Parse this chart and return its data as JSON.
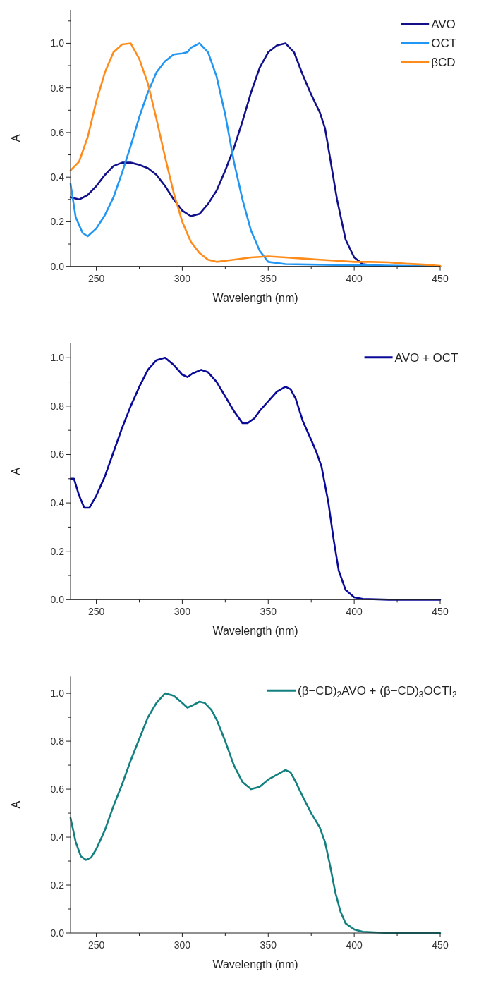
{
  "chart_data": [
    {
      "type": "line",
      "xlabel": "Wavelength (nm)",
      "ylabel": "A",
      "xlim": [
        235,
        450
      ],
      "ylim": [
        0,
        1.15
      ],
      "legend": "top right",
      "grid": false,
      "line_style": "solid",
      "xticks": [
        250,
        {
          "value": 275,
          "label": null
        },
        300,
        {
          "value": 325,
          "label": null
        },
        350,
        {
          "value": 375,
          "label": null
        },
        400,
        {
          "value": 425,
          "label": null
        },
        450
      ],
      "yticks": [
        {
          "value": 0,
          "label": "0.0"
        },
        {
          "value": 0.1,
          "label": null
        },
        {
          "value": 0.2,
          "label": "0.2"
        },
        {
          "value": 0.3,
          "label": null
        },
        {
          "value": 0.4,
          "label": "0.4"
        },
        {
          "value": 0.5,
          "label": null
        },
        {
          "value": 0.6,
          "label": "0.6"
        },
        {
          "value": 0.7,
          "label": null
        },
        {
          "value": 0.8,
          "label": "0.8"
        },
        {
          "value": 0.9,
          "label": null
        },
        {
          "value": 1.0,
          "label": "1.0"
        },
        {
          "value": 1.1,
          "label": null
        }
      ],
      "series": [
        {
          "name": "AVO",
          "color": "#10108c",
          "x": [
            235,
            240,
            245,
            250,
            255,
            260,
            265,
            270,
            275,
            280,
            285,
            290,
            295,
            300,
            305,
            310,
            315,
            320,
            325,
            330,
            335,
            340,
            345,
            350,
            355,
            360,
            365,
            370,
            375,
            380,
            383,
            385,
            390,
            395,
            400,
            405,
            410,
            420,
            450
          ],
          "values": [
            0.31,
            0.3,
            0.32,
            0.36,
            0.41,
            0.45,
            0.465,
            0.465,
            0.455,
            0.44,
            0.41,
            0.36,
            0.3,
            0.25,
            0.225,
            0.235,
            0.28,
            0.34,
            0.43,
            0.53,
            0.65,
            0.78,
            0.89,
            0.96,
            0.99,
            1.0,
            0.96,
            0.86,
            0.77,
            0.69,
            0.62,
            0.53,
            0.3,
            0.12,
            0.04,
            0.01,
            0.005,
            0,
            0
          ]
        },
        {
          "name": "OCT",
          "color": "#2196f3",
          "x": [
            235,
            238,
            242,
            245,
            250,
            255,
            260,
            265,
            270,
            275,
            280,
            285,
            290,
            295,
            300,
            303,
            305,
            310,
            315,
            320,
            325,
            330,
            335,
            340,
            345,
            350,
            360,
            400,
            450
          ],
          "values": [
            0.37,
            0.22,
            0.15,
            0.135,
            0.17,
            0.23,
            0.31,
            0.42,
            0.54,
            0.67,
            0.78,
            0.87,
            0.92,
            0.95,
            0.955,
            0.96,
            0.98,
            1.0,
            0.96,
            0.85,
            0.68,
            0.47,
            0.3,
            0.16,
            0.07,
            0.02,
            0.01,
            0.005,
            0
          ]
        },
        {
          "name": "βCD",
          "color": "#ff8c1a",
          "x": [
            235,
            240,
            245,
            250,
            255,
            260,
            265,
            270,
            275,
            280,
            285,
            290,
            295,
            300,
            305,
            310,
            315,
            320,
            325,
            330,
            340,
            350,
            360,
            370,
            380,
            390,
            400,
            410,
            420,
            430,
            440,
            450
          ],
          "values": [
            0.43,
            0.47,
            0.58,
            0.74,
            0.87,
            0.96,
            0.995,
            1.0,
            0.93,
            0.82,
            0.66,
            0.49,
            0.33,
            0.2,
            0.11,
            0.06,
            0.03,
            0.02,
            0.025,
            0.03,
            0.04,
            0.045,
            0.04,
            0.035,
            0.03,
            0.025,
            0.02,
            0.02,
            0.018,
            0.012,
            0.008,
            0.002
          ]
        }
      ]
    },
    {
      "type": "line",
      "xlabel": "Wavelength (nm)",
      "ylabel": "A",
      "xlim": [
        235,
        450
      ],
      "ylim": [
        0,
        1.06
      ],
      "legend": "top right",
      "grid": false,
      "line_style": "solid",
      "xticks": [
        250,
        {
          "value": 275,
          "label": null
        },
        300,
        {
          "value": 325,
          "label": null
        },
        350,
        {
          "value": 375,
          "label": null
        },
        400,
        {
          "value": 425,
          "label": null
        },
        450
      ],
      "yticks": [
        {
          "value": 0,
          "label": "0.0"
        },
        {
          "value": 0.1,
          "label": null
        },
        {
          "value": 0.2,
          "label": "0.2"
        },
        {
          "value": 0.3,
          "label": null
        },
        {
          "value": 0.4,
          "label": "0.4"
        },
        {
          "value": 0.5,
          "label": null
        },
        {
          "value": 0.6,
          "label": "0.6"
        },
        {
          "value": 0.7,
          "label": null
        },
        {
          "value": 0.8,
          "label": "0.8"
        },
        {
          "value": 0.9,
          "label": null
        },
        {
          "value": 1.0,
          "label": "1.0"
        }
      ],
      "series": [
        {
          "name": "AVO + OCT",
          "color": "#0a0a9a",
          "x": [
            235,
            237,
            240,
            243,
            246,
            250,
            255,
            260,
            265,
            270,
            275,
            280,
            285,
            290,
            295,
            300,
            303,
            306,
            311,
            315,
            320,
            325,
            330,
            335,
            338,
            342,
            345,
            350,
            355,
            360,
            363,
            366,
            370,
            375,
            378,
            381,
            385,
            388,
            391,
            395,
            400,
            405,
            420,
            450
          ],
          "values": [
            0.5,
            0.5,
            0.43,
            0.38,
            0.38,
            0.43,
            0.51,
            0.61,
            0.71,
            0.8,
            0.88,
            0.95,
            0.99,
            1.0,
            0.97,
            0.93,
            0.92,
            0.935,
            0.95,
            0.94,
            0.9,
            0.84,
            0.78,
            0.73,
            0.73,
            0.75,
            0.78,
            0.82,
            0.86,
            0.88,
            0.87,
            0.83,
            0.74,
            0.66,
            0.61,
            0.55,
            0.4,
            0.25,
            0.12,
            0.04,
            0.01,
            0.003,
            0,
            0
          ]
        }
      ]
    },
    {
      "type": "line",
      "xlabel": "Wavelength (nm)",
      "ylabel": "A",
      "xlim": [
        235,
        450
      ],
      "ylim": [
        0,
        1.07
      ],
      "legend": "top right",
      "grid": false,
      "line_style": "solid",
      "xticks": [
        250,
        {
          "value": 275,
          "label": null
        },
        300,
        {
          "value": 325,
          "label": null
        },
        350,
        {
          "value": 375,
          "label": null
        },
        400,
        {
          "value": 425,
          "label": null
        },
        450
      ],
      "yticks": [
        {
          "value": 0,
          "label": "0.0"
        },
        {
          "value": 0.1,
          "label": null
        },
        {
          "value": 0.2,
          "label": "0.2"
        },
        {
          "value": 0.3,
          "label": null
        },
        {
          "value": 0.4,
          "label": "0.4"
        },
        {
          "value": 0.5,
          "label": null
        },
        {
          "value": 0.6,
          "label": "0.6"
        },
        {
          "value": 0.7,
          "label": null
        },
        {
          "value": 0.8,
          "label": "0.8"
        },
        {
          "value": 0.9,
          "label": null
        },
        {
          "value": 1.0,
          "label": "1.0"
        }
      ],
      "series": [
        {
          "name": "(β−CD)$_{2}$AVO + (β−CD)$_{3}$OCTI$_{2}$",
          "color": "#138080",
          "x": [
            235,
            238,
            241,
            244,
            247,
            250,
            255,
            260,
            265,
            270,
            275,
            280,
            285,
            290,
            295,
            300,
            303,
            306,
            310,
            313,
            317,
            320,
            325,
            330,
            335,
            340,
            345,
            350,
            355,
            360,
            363,
            366,
            370,
            375,
            380,
            383,
            386,
            389,
            392,
            395,
            400,
            405,
            420,
            450
          ],
          "values": [
            0.48,
            0.38,
            0.32,
            0.305,
            0.315,
            0.35,
            0.43,
            0.53,
            0.62,
            0.72,
            0.81,
            0.9,
            0.96,
            1.0,
            0.99,
            0.96,
            0.94,
            0.95,
            0.965,
            0.96,
            0.93,
            0.89,
            0.8,
            0.7,
            0.63,
            0.6,
            0.61,
            0.64,
            0.66,
            0.68,
            0.67,
            0.63,
            0.57,
            0.5,
            0.44,
            0.38,
            0.28,
            0.17,
            0.09,
            0.04,
            0.015,
            0.005,
            0,
            0
          ]
        }
      ]
    }
  ]
}
